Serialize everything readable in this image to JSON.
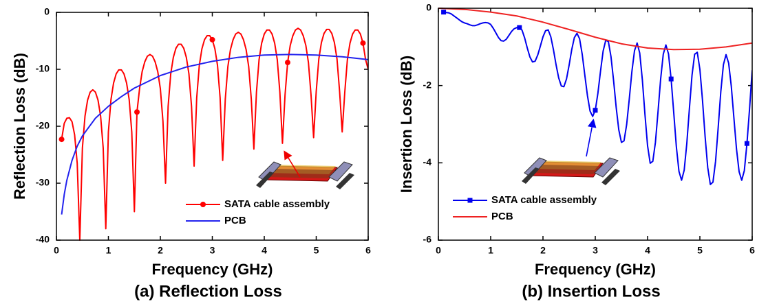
{
  "chart_data": [
    {
      "type": "line",
      "caption": "(a) Reflection Loss",
      "x_label": "Frequency (GHz)",
      "y_label": "Reflection Loss (dB)",
      "xlim": [
        0,
        6
      ],
      "ylim": [
        -40,
        0
      ],
      "xticks": [
        0,
        1,
        2,
        3,
        4,
        5,
        6
      ],
      "yticks": [
        0,
        -10,
        -20,
        -30,
        -40
      ],
      "legend": "lower right",
      "series": [
        {
          "name": "SATA cable assembly",
          "color": "#ff0000",
          "marker": "circle",
          "marker_every": 29,
          "x": [
            0.1,
            0.15,
            0.2,
            0.25,
            0.3,
            0.35,
            0.4,
            0.45,
            0.5,
            0.55,
            0.6,
            0.65,
            0.7,
            0.75,
            0.8,
            0.85,
            0.9,
            0.95,
            1.0,
            1.05,
            1.1,
            1.15,
            1.2,
            1.25,
            1.3,
            1.35,
            1.4,
            1.45,
            1.5,
            1.55,
            1.6,
            1.65,
            1.7,
            1.75,
            1.8,
            1.85,
            1.9,
            1.95,
            2.0,
            2.05,
            2.1,
            2.15,
            2.2,
            2.25,
            2.3,
            2.35,
            2.4,
            2.45,
            2.5,
            2.55,
            2.6,
            2.65,
            2.7,
            2.75,
            2.8,
            2.85,
            2.9,
            2.95,
            3.0,
            3.05,
            3.1,
            3.15,
            3.2,
            3.25,
            3.3,
            3.35,
            3.4,
            3.45,
            3.5,
            3.55,
            3.6,
            3.65,
            3.7,
            3.75,
            3.8,
            3.85,
            3.9,
            3.95,
            4.0,
            4.05,
            4.1,
            4.15,
            4.2,
            4.25,
            4.3,
            4.35,
            4.4,
            4.45,
            4.5,
            4.55,
            4.6,
            4.65,
            4.7,
            4.75,
            4.8,
            4.85,
            4.9,
            4.95,
            5.0,
            5.05,
            5.1,
            5.15,
            5.2,
            5.25,
            5.3,
            5.35,
            5.4,
            5.45,
            5.5,
            5.55,
            5.6,
            5.65,
            5.7,
            5.75,
            5.8,
            5.85,
            5.9,
            5.95,
            6.0
          ],
          "values": [
            -22.3,
            -19.5,
            -18.6,
            -18.5,
            -19.2,
            -21.5,
            -26.5,
            -40,
            -23.8,
            -18.2,
            -15.4,
            -14.0,
            -13.6,
            -14.0,
            -15.4,
            -18.2,
            -23.8,
            -38,
            -21.0,
            -15.3,
            -12.4,
            -10.8,
            -10.1,
            -10.1,
            -10.8,
            -12.4,
            -15.3,
            -21.0,
            -35,
            -17.5,
            -13.4,
            -10.4,
            -8.7,
            -7.7,
            -7.4,
            -7.7,
            -8.7,
            -10.4,
            -13.4,
            -19.1,
            -30,
            -16.5,
            -10.8,
            -7.9,
            -6.3,
            -5.6,
            -5.6,
            -6.3,
            -7.9,
            -10.8,
            -16.5,
            -27,
            -15.0,
            -9.3,
            -6.4,
            -4.8,
            -4.1,
            -4.1,
            -4.8,
            -6.4,
            -9.3,
            -15.0,
            -26,
            -15.2,
            -9.5,
            -6.5,
            -4.8,
            -3.8,
            -3.5,
            -3.8,
            -4.8,
            -6.5,
            -9.5,
            -15.2,
            -24,
            -14.0,
            -8.3,
            -5.4,
            -3.8,
            -3.1,
            -3.1,
            -3.8,
            -5.4,
            -8.3,
            -14.0,
            -23,
            -14.5,
            -8.8,
            -5.8,
            -4.1,
            -3.1,
            -2.8,
            -3.1,
            -4.1,
            -5.8,
            -8.8,
            -14.5,
            -22,
            -13.9,
            -8.2,
            -5.3,
            -3.7,
            -3.0,
            -3.0,
            -3.7,
            -5.3,
            -8.2,
            -13.9,
            -21,
            -14.0,
            -8.3,
            -5.4,
            -3.8,
            -3.1,
            -3.1,
            -3.8,
            -5.4,
            -8.3,
            -10
          ]
        },
        {
          "name": "PCB",
          "color": "#2222ee",
          "x": [
            0.1,
            0.15,
            0.2,
            0.3,
            0.4,
            0.5,
            0.75,
            1,
            1.25,
            1.5,
            2,
            2.5,
            3,
            3.5,
            4,
            4.5,
            5,
            5.5,
            6
          ],
          "values": [
            -35.5,
            -32,
            -29.5,
            -26,
            -23.5,
            -21.7,
            -18.6,
            -16.5,
            -14.8,
            -13.3,
            -11.1,
            -9.6,
            -8.6,
            -7.9,
            -7.5,
            -7.4,
            -7.5,
            -7.8,
            -8.3
          ]
        }
      ]
    },
    {
      "type": "line",
      "caption": "(b) Insertion Loss",
      "x_label": "Frequency (GHz)",
      "y_label": "Insertion Loss (dB)",
      "xlim": [
        0,
        6
      ],
      "ylim": [
        -6,
        0
      ],
      "xticks": [
        0,
        1,
        2,
        3,
        4,
        5,
        6
      ],
      "yticks": [
        0,
        -2,
        -4,
        -6
      ],
      "legend": "lower left",
      "series": [
        {
          "name": "SATA cable assembly",
          "color": "#0000ee",
          "marker": "square",
          "marker_every": 29,
          "x": [
            0.1,
            0.15,
            0.2,
            0.25,
            0.3,
            0.35,
            0.4,
            0.45,
            0.5,
            0.55,
            0.6,
            0.65,
            0.7,
            0.75,
            0.8,
            0.85,
            0.9,
            0.95,
            1.0,
            1.05,
            1.1,
            1.15,
            1.2,
            1.25,
            1.3,
            1.35,
            1.4,
            1.45,
            1.5,
            1.55,
            1.6,
            1.65,
            1.7,
            1.75,
            1.8,
            1.85,
            1.9,
            1.95,
            2.0,
            2.05,
            2.1,
            2.15,
            2.2,
            2.25,
            2.3,
            2.35,
            2.4,
            2.45,
            2.5,
            2.55,
            2.6,
            2.65,
            2.7,
            2.75,
            2.8,
            2.85,
            2.9,
            2.95,
            3.0,
            3.05,
            3.1,
            3.15,
            3.2,
            3.25,
            3.3,
            3.35,
            3.4,
            3.45,
            3.5,
            3.55,
            3.6,
            3.65,
            3.7,
            3.75,
            3.8,
            3.85,
            3.9,
            3.95,
            4.0,
            4.05,
            4.1,
            4.15,
            4.2,
            4.25,
            4.3,
            4.35,
            4.4,
            4.45,
            4.5,
            4.55,
            4.6,
            4.65,
            4.7,
            4.75,
            4.8,
            4.85,
            4.9,
            4.95,
            5.0,
            5.05,
            5.1,
            5.15,
            5.2,
            5.25,
            5.3,
            5.35,
            5.4,
            5.45,
            5.5,
            5.55,
            5.6,
            5.65,
            5.7,
            5.75,
            5.8,
            5.85,
            5.9,
            5.95,
            6.0
          ],
          "values": [
            -0.1,
            -0.11,
            -0.12,
            -0.15,
            -0.2,
            -0.25,
            -0.3,
            -0.35,
            -0.38,
            -0.4,
            -0.43,
            -0.45,
            -0.45,
            -0.43,
            -0.4,
            -0.38,
            -0.37,
            -0.38,
            -0.42,
            -0.52,
            -0.64,
            -0.76,
            -0.84,
            -0.85,
            -0.8,
            -0.7,
            -0.6,
            -0.53,
            -0.5,
            -0.5,
            -0.57,
            -0.77,
            -1.03,
            -1.26,
            -1.39,
            -1.37,
            -1.21,
            -0.98,
            -0.74,
            -0.58,
            -0.56,
            -0.74,
            -1.07,
            -1.46,
            -1.8,
            -2.01,
            -2.03,
            -1.83,
            -1.47,
            -1.07,
            -0.76,
            -0.65,
            -0.79,
            -1.19,
            -1.73,
            -2.26,
            -2.66,
            -2.8,
            -2.64,
            -2.2,
            -1.63,
            -1.11,
            -0.83,
            -0.86,
            -1.25,
            -1.87,
            -2.57,
            -3.15,
            -3.47,
            -3.43,
            -3.01,
            -2.35,
            -1.64,
            -1.1,
            -0.9,
            -1.16,
            -1.85,
            -2.75,
            -3.56,
            -4.01,
            -3.96,
            -3.47,
            -2.67,
            -1.83,
            -1.19,
            -0.95,
            -1.18,
            -1.83,
            -2.7,
            -3.58,
            -4.22,
            -4.45,
            -4.19,
            -3.5,
            -2.59,
            -1.73,
            -1.19,
            -1.14,
            -1.58,
            -2.38,
            -3.32,
            -4.12,
            -4.56,
            -4.5,
            -3.96,
            -3.09,
            -2.16,
            -1.46,
            -1.2,
            -1.42,
            -2.01,
            -2.83,
            -3.64,
            -4.23,
            -4.45,
            -4.2,
            -3.5,
            -2.6,
            -1.6
          ]
        },
        {
          "name": "PCB",
          "color": "#ee2222",
          "x": [
            0,
            0.5,
            1,
            1.5,
            2,
            2.5,
            3,
            3.5,
            4,
            4.5,
            5,
            5.5,
            6
          ],
          "values": [
            0,
            -0.03,
            -0.1,
            -0.2,
            -0.36,
            -0.55,
            -0.75,
            -0.92,
            -1.03,
            -1.07,
            -1.06,
            -1.0,
            -0.9
          ]
        }
      ]
    }
  ]
}
